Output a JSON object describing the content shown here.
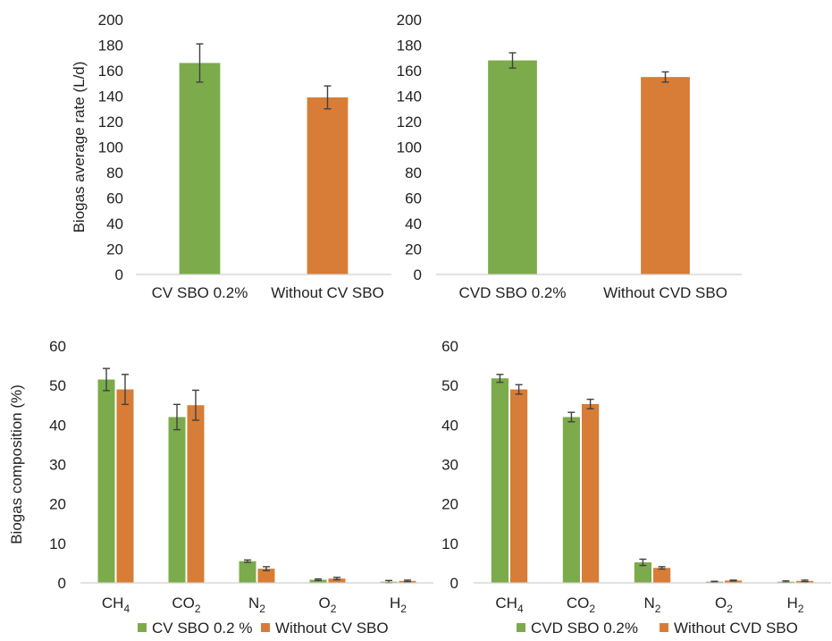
{
  "colors": {
    "green": "#7cab4b",
    "orange": "#d77d37",
    "axis": "#d0d0d0",
    "error_bar": "#404040"
  },
  "chart_data": [
    {
      "type": "bar",
      "categories": [
        "CV SBO 0.2%",
        "Without CV SBO"
      ],
      "values": [
        166,
        139
      ],
      "errors": [
        15,
        9
      ],
      "bar_colors": [
        "green",
        "orange"
      ],
      "ylabel": "Biogas average rate (L/d)",
      "ylim": [
        0,
        200
      ],
      "yticks": [
        0,
        20,
        40,
        60,
        80,
        100,
        120,
        140,
        160,
        180,
        200
      ],
      "grid": false
    },
    {
      "type": "bar",
      "categories": [
        "CVD SBO 0.2%",
        "Without CVD SBO"
      ],
      "values": [
        168,
        155
      ],
      "errors": [
        6,
        4
      ],
      "bar_colors": [
        "green",
        "orange"
      ],
      "ylabel": "",
      "ylim": [
        0,
        200
      ],
      "yticks": [
        0,
        20,
        40,
        60,
        80,
        100,
        120,
        140,
        160,
        180,
        200
      ],
      "grid": false
    },
    {
      "type": "bar",
      "categories": [
        {
          "base": "CH",
          "sub": "4"
        },
        {
          "base": "CO",
          "sub": "2"
        },
        {
          "base": "N",
          "sub": "2"
        },
        {
          "base": "O",
          "sub": "2"
        },
        {
          "base": "H",
          "sub": "2"
        }
      ],
      "series": [
        {
          "name": "CV SBO 0.2 %",
          "color": "green",
          "values": [
            51.5,
            42,
            5.5,
            0.8,
            0.3
          ],
          "errors": [
            2.8,
            3.2,
            0.3,
            0.2,
            0.3
          ]
        },
        {
          "name": "Without CV SBO",
          "color": "orange",
          "values": [
            49,
            45,
            3.6,
            1.1,
            0.5
          ],
          "errors": [
            3.8,
            3.8,
            0.5,
            0.3,
            0.2
          ]
        }
      ],
      "ylabel": "Biogas composition (%)",
      "ylim": [
        0,
        60
      ],
      "yticks": [
        0,
        10,
        20,
        30,
        40,
        50,
        60
      ],
      "legend": "bottom",
      "grid": false
    },
    {
      "type": "bar",
      "categories": [
        {
          "base": "CH",
          "sub": "4"
        },
        {
          "base": "CO",
          "sub": "2"
        },
        {
          "base": "N",
          "sub": "2"
        },
        {
          "base": "O",
          "sub": "2"
        },
        {
          "base": "H",
          "sub": "2"
        }
      ],
      "series": [
        {
          "name": "CVD SBO 0.2%",
          "color": "green",
          "values": [
            51.8,
            42,
            5.2,
            0.3,
            0.3
          ],
          "errors": [
            1.0,
            1.2,
            0.8,
            0.1,
            0.2
          ]
        },
        {
          "name": "Without CVD SBO",
          "color": "orange",
          "values": [
            49,
            45.3,
            3.8,
            0.6,
            0.5
          ],
          "errors": [
            1.2,
            1.2,
            0.3,
            0.1,
            0.2
          ]
        }
      ],
      "ylabel": "",
      "ylim": [
        0,
        60
      ],
      "yticks": [
        0,
        10,
        20,
        30,
        40,
        50,
        60
      ],
      "legend": "bottom",
      "grid": false
    }
  ]
}
